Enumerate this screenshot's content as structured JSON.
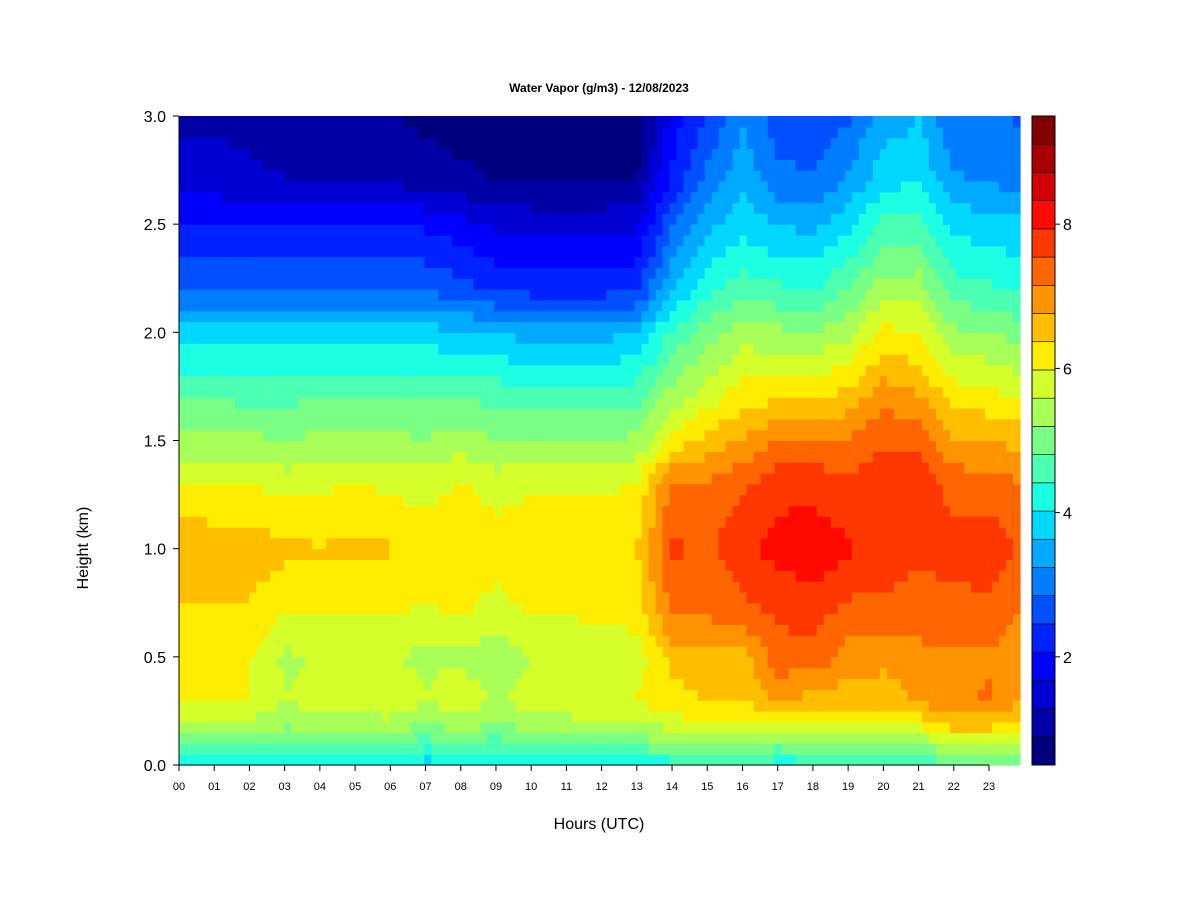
{
  "chart_data": {
    "type": "heatmap",
    "title": "Water Vapor (g/m3) - 12/08/2023",
    "xlabel": "Hours (UTC)",
    "ylabel": "Height (km)",
    "x_range": [
      0,
      24
    ],
    "y_range": [
      0,
      3.0
    ],
    "x_ticks": [
      "00",
      "01",
      "02",
      "03",
      "04",
      "05",
      "06",
      "07",
      "08",
      "09",
      "10",
      "11",
      "12",
      "13",
      "14",
      "15",
      "16",
      "17",
      "18",
      "19",
      "20",
      "21",
      "22",
      "23"
    ],
    "y_ticks": [
      "0.0",
      "0.5",
      "1.0",
      "1.5",
      "2.0",
      "2.5",
      "3.0"
    ],
    "colorbar": {
      "range": [
        0.5,
        9.5
      ],
      "ticks": [
        "2",
        "4",
        "6",
        "8"
      ],
      "levels": 18,
      "colors": [
        "#00007f",
        "#0000a6",
        "#0000d2",
        "#0000ff",
        "#0022ff",
        "#0050ff",
        "#007eff",
        "#00aaff",
        "#00d8ff",
        "#1dffe2",
        "#4bffb3",
        "#79ff86",
        "#a7ff58",
        "#d4ff2b",
        "#ffed00",
        "#ffbf00",
        "#ff9300",
        "#ff6500",
        "#ff3700",
        "#ff0900",
        "#d20000",
        "#a60000",
        "#7f0000"
      ]
    },
    "hourly_profiles": {
      "heights_km": [
        0.0,
        0.1,
        0.2,
        0.3,
        0.5,
        0.7,
        1.0,
        1.3,
        1.5,
        1.7,
        2.0,
        2.2,
        2.5,
        2.7,
        3.0
      ],
      "hours": [
        0,
        1,
        2,
        3,
        4,
        5,
        6,
        7,
        8,
        9,
        10,
        11,
        12,
        13,
        14,
        15,
        16,
        17,
        18,
        19,
        20,
        21,
        22,
        23,
        24
      ],
      "values": [
        [
          4.2,
          5.0,
          5.5,
          6.0,
          6.0,
          6.3,
          6.8,
          6.0,
          5.3,
          4.8,
          3.8,
          2.8,
          2.0,
          1.5,
          1.2
        ],
        [
          4.2,
          5.0,
          5.5,
          6.0,
          6.0,
          6.3,
          6.6,
          6.0,
          5.3,
          4.8,
          3.8,
          2.8,
          2.0,
          1.5,
          1.2
        ],
        [
          4.2,
          5.0,
          5.5,
          6.0,
          6.0,
          6.3,
          6.6,
          6.0,
          5.3,
          4.7,
          3.8,
          2.8,
          2.0,
          1.4,
          1.1
        ],
        [
          4.0,
          4.8,
          5.3,
          5.6,
          5.5,
          6.0,
          6.5,
          5.8,
          5.2,
          4.7,
          3.8,
          2.8,
          2.0,
          1.3,
          1.0
        ],
        [
          4.0,
          4.8,
          5.4,
          5.8,
          5.6,
          6.0,
          6.4,
          5.9,
          5.3,
          4.8,
          3.8,
          2.8,
          2.1,
          1.3,
          1.0
        ],
        [
          4.0,
          4.8,
          5.4,
          5.8,
          5.6,
          6.0,
          6.5,
          6.0,
          5.3,
          4.8,
          3.8,
          2.9,
          2.1,
          1.3,
          1.0
        ],
        [
          4.0,
          4.8,
          5.5,
          5.9,
          5.6,
          6.0,
          6.4,
          5.9,
          5.3,
          4.8,
          3.8,
          2.9,
          2.1,
          1.2,
          0.9
        ],
        [
          3.8,
          4.6,
          5.2,
          5.6,
          5.5,
          5.9,
          6.3,
          5.8,
          5.2,
          4.8,
          3.8,
          2.8,
          2.0,
          1.1,
          0.8
        ],
        [
          4.0,
          4.8,
          5.5,
          5.9,
          5.5,
          6.0,
          6.4,
          6.0,
          5.4,
          4.8,
          3.7,
          2.6,
          1.8,
          1.0,
          0.7
        ],
        [
          3.9,
          4.6,
          5.2,
          5.5,
          5.3,
          5.8,
          6.2,
          5.8,
          5.2,
          4.7,
          3.6,
          2.4,
          1.6,
          0.9,
          0.6
        ],
        [
          4.1,
          4.9,
          5.5,
          5.8,
          5.6,
          6.0,
          6.3,
          5.9,
          5.2,
          4.6,
          3.5,
          2.3,
          1.5,
          0.9,
          0.6
        ],
        [
          4.1,
          4.9,
          5.5,
          5.8,
          5.6,
          6.0,
          6.3,
          5.9,
          5.2,
          4.6,
          3.5,
          2.3,
          1.5,
          0.9,
          0.6
        ],
        [
          4.1,
          5.0,
          5.6,
          5.9,
          5.7,
          6.1,
          6.3,
          5.9,
          5.2,
          4.6,
          3.5,
          2.3,
          1.5,
          0.9,
          0.6
        ],
        [
          4.1,
          5.0,
          5.6,
          6.0,
          5.8,
          6.1,
          6.4,
          6.0,
          5.3,
          4.7,
          3.6,
          2.4,
          1.6,
          0.9,
          0.6
        ],
        [
          4.2,
          5.1,
          5.8,
          6.2,
          6.5,
          7.2,
          7.6,
          7.2,
          6.1,
          5.4,
          4.5,
          3.6,
          2.8,
          2.2,
          1.8
        ],
        [
          4.3,
          5.2,
          6.0,
          6.4,
          6.6,
          7.2,
          7.5,
          7.2,
          6.5,
          5.8,
          5.0,
          4.3,
          3.5,
          3.0,
          2.5
        ],
        [
          4.3,
          5.2,
          6.0,
          6.4,
          6.6,
          7.4,
          7.8,
          7.5,
          6.8,
          6.2,
          5.4,
          4.6,
          3.9,
          3.5,
          3.2
        ],
        [
          4.2,
          5.0,
          6.0,
          6.8,
          7.4,
          7.6,
          8.1,
          7.8,
          7.2,
          6.3,
          5.3,
          4.5,
          3.6,
          3.0,
          2.6
        ],
        [
          4.2,
          5.1,
          6.0,
          6.6,
          7.4,
          7.7,
          8.2,
          7.8,
          7.2,
          6.3,
          5.2,
          4.4,
          3.5,
          2.9,
          2.5
        ],
        [
          4.2,
          5.1,
          6.0,
          6.5,
          7.0,
          7.4,
          8.0,
          7.6,
          7.2,
          6.5,
          5.5,
          4.8,
          3.9,
          3.3,
          2.8
        ],
        [
          4.2,
          5.1,
          6.0,
          6.5,
          6.9,
          7.4,
          7.8,
          7.8,
          7.5,
          7.0,
          6.1,
          5.4,
          4.5,
          3.9,
          3.4
        ],
        [
          4.4,
          5.2,
          6.2,
          6.8,
          7.0,
          7.4,
          7.6,
          7.8,
          7.5,
          6.8,
          6.0,
          5.4,
          4.6,
          4.0,
          3.6
        ],
        [
          4.8,
          5.7,
          6.6,
          7.1,
          7.1,
          7.4,
          7.7,
          7.4,
          6.8,
          6.2,
          5.3,
          4.6,
          3.9,
          3.3,
          2.9
        ],
        [
          4.8,
          5.7,
          6.6,
          7.2,
          7.1,
          7.4,
          7.8,
          7.3,
          6.8,
          6.1,
          5.2,
          4.5,
          3.8,
          3.2,
          2.9
        ],
        [
          4.7,
          5.6,
          6.3,
          6.8,
          6.8,
          7.1,
          7.5,
          7.2,
          6.6,
          5.9,
          5.0,
          4.3,
          3.7,
          3.1,
          2.8
        ]
      ]
    }
  }
}
